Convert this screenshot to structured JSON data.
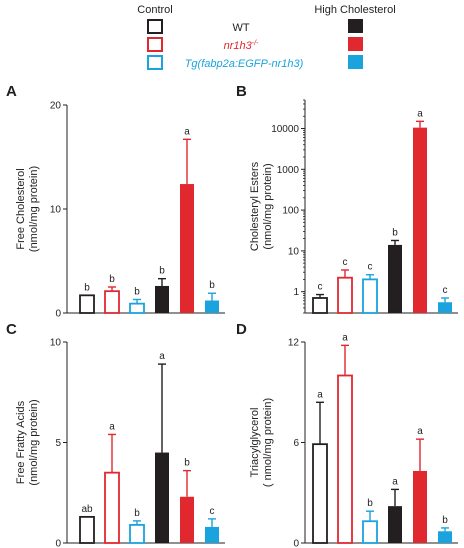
{
  "legend": {
    "control_header": "Control",
    "high_header": "High Cholesterol",
    "entries": [
      {
        "label": "WT",
        "color": "#231f20"
      },
      {
        "label": "nr1h3",
        "superscript": "-/-",
        "color": "#e1282f"
      },
      {
        "label": "Tg(fabp2a:EGFP-nr1h3)",
        "color": "#1aa3dc"
      }
    ]
  },
  "colors": {
    "wt": "#231f20",
    "ko": "#e1282f",
    "tg": "#1aa3dc"
  },
  "chart_data": [
    {
      "type": "bar",
      "panel": "A",
      "ylabel_line1": "Free  Cholesterol",
      "ylabel_line2": "(nmol/mg protein)",
      "ylim": [
        0,
        20
      ],
      "yticks": [
        "0",
        "10",
        "20"
      ],
      "scale": "linear",
      "groups": [
        "Control WT",
        "Control nr1h3-/-",
        "Control Tg",
        "High Cholesterol WT",
        "High Cholesterol nr1h3-/-",
        "High Cholesterol Tg"
      ],
      "values": [
        1.7,
        2.1,
        0.9,
        2.6,
        12.4,
        1.2
      ],
      "errors": [
        0.0,
        0.4,
        0.4,
        0.7,
        4.3,
        0.7
      ],
      "letters": [
        "b",
        "b",
        "b",
        "b",
        "a",
        "b"
      ]
    },
    {
      "type": "bar",
      "panel": "B",
      "ylabel_line1": "Cholesteryl Esters",
      "ylabel_line2": "(nmol/mg protein)",
      "scale": "log",
      "ylim": [
        0.3,
        50000
      ],
      "yticks": [
        "1",
        "10",
        "100",
        "1000",
        "10000"
      ],
      "groups": [
        "Control WT",
        "Control nr1h3-/-",
        "Control Tg",
        "High Cholesterol WT",
        "High Cholesterol nr1h3-/-",
        "High Cholesterol Tg"
      ],
      "values": [
        0.7,
        2.2,
        2.0,
        14,
        10500,
        0.55
      ],
      "errors": [
        0.15,
        1.2,
        0.6,
        4,
        4500,
        0.15
      ],
      "letters": [
        "c",
        "c",
        "c",
        "b",
        "a",
        "c"
      ]
    },
    {
      "type": "bar",
      "panel": "C",
      "ylabel_line1": "Free Fratty Acids",
      "ylabel_line2": "(nmol/mg protein)",
      "ylim": [
        0,
        10
      ],
      "yticks": [
        "0",
        "5",
        "10"
      ],
      "scale": "linear",
      "groups": [
        "Control WT",
        "Control nr1h3-/-",
        "Control Tg",
        "High Cholesterol WT",
        "High Cholesterol nr1h3-/-",
        "High Cholesterol Tg"
      ],
      "values": [
        1.3,
        3.5,
        0.9,
        4.5,
        2.3,
        0.8
      ],
      "errors": [
        0.0,
        1.9,
        0.2,
        4.4,
        1.3,
        0.4
      ],
      "letters": [
        "ab",
        "a",
        "b",
        "a",
        "b",
        "c"
      ]
    },
    {
      "type": "bar",
      "panel": "D",
      "ylabel_line1": "Triacylglycerol",
      "ylabel_line2": "( nmol/mg protein)",
      "ylim": [
        0,
        12
      ],
      "yticks": [
        "0",
        "6",
        "12"
      ],
      "scale": "linear",
      "groups": [
        "Control WT",
        "Control nr1h3-/-",
        "Control Tg",
        "High Cholesterol WT",
        "High Cholesterol nr1h3-/-",
        "High Cholesterol Tg"
      ],
      "values": [
        5.9,
        10.0,
        1.3,
        2.2,
        4.3,
        0.7
      ],
      "errors": [
        2.5,
        1.8,
        0.6,
        1.0,
        1.9,
        0.2
      ],
      "letters": [
        "a",
        "a",
        "b",
        "a",
        "a",
        "b"
      ]
    }
  ]
}
